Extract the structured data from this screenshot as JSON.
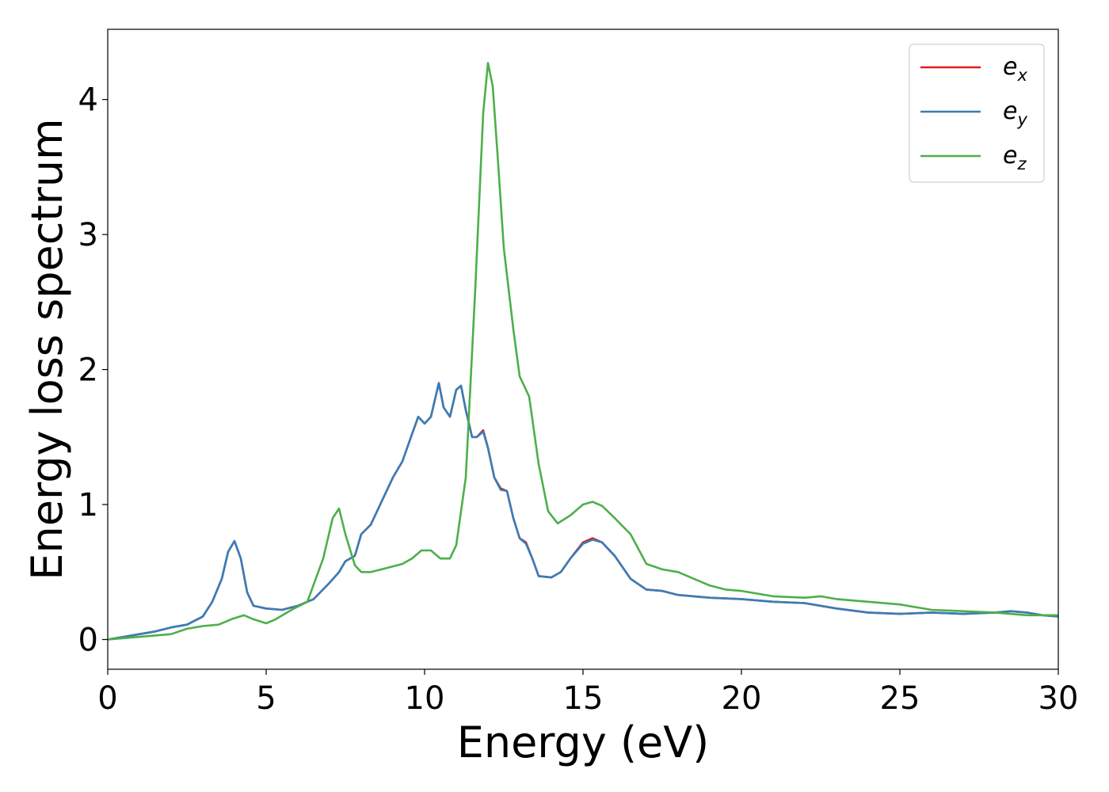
{
  "chart_data": {
    "type": "line",
    "xlabel": "Energy (eV)",
    "ylabel": "Energy loss spectrum",
    "xlim": [
      0,
      30
    ],
    "ylim": [
      -0.22,
      4.52
    ],
    "xticks": [
      0,
      5,
      10,
      15,
      20,
      25,
      30
    ],
    "yticks": [
      0,
      1,
      2,
      3,
      4
    ],
    "xtick_labels": [
      "0",
      "5",
      "10",
      "15",
      "20",
      "25",
      "30"
    ],
    "ytick_labels": [
      "0",
      "1",
      "2",
      "3",
      "4"
    ],
    "grid": false,
    "legend_position": "top-right",
    "series": [
      {
        "name": "e_x",
        "legend_base": "e",
        "legend_sub": "x",
        "color": "#e41a1c",
        "x": [
          0,
          0.5,
          1,
          1.5,
          2,
          2.5,
          3,
          3.3,
          3.6,
          3.8,
          4.0,
          4.2,
          4.4,
          4.6,
          5.0,
          5.5,
          6.0,
          6.5,
          7.0,
          7.3,
          7.5,
          7.8,
          8.0,
          8.3,
          8.6,
          9.0,
          9.3,
          9.6,
          9.8,
          10.0,
          10.2,
          10.45,
          10.6,
          10.8,
          11.0,
          11.15,
          11.3,
          11.5,
          11.65,
          11.85,
          12.0,
          12.2,
          12.4,
          12.6,
          12.8,
          13.0,
          13.2,
          13.4,
          13.6,
          14.0,
          14.3,
          14.6,
          15.0,
          15.3,
          15.6,
          16.0,
          16.5,
          17.0,
          17.5,
          18.0,
          19.0,
          20.0,
          21.0,
          22.0,
          23.0,
          24.0,
          25.0,
          26.0,
          27.0,
          28.0,
          28.5,
          29.0,
          29.5,
          30.0
        ],
        "values": [
          0.0,
          0.02,
          0.04,
          0.06,
          0.09,
          0.11,
          0.17,
          0.28,
          0.45,
          0.65,
          0.73,
          0.6,
          0.35,
          0.25,
          0.23,
          0.22,
          0.25,
          0.3,
          0.42,
          0.5,
          0.58,
          0.62,
          0.78,
          0.85,
          1.0,
          1.2,
          1.32,
          1.52,
          1.65,
          1.6,
          1.65,
          1.9,
          1.72,
          1.65,
          1.85,
          1.88,
          1.7,
          1.5,
          1.5,
          1.55,
          1.42,
          1.2,
          1.12,
          1.1,
          0.9,
          0.75,
          0.72,
          0.6,
          0.47,
          0.46,
          0.5,
          0.6,
          0.72,
          0.75,
          0.72,
          0.62,
          0.45,
          0.37,
          0.36,
          0.33,
          0.31,
          0.3,
          0.28,
          0.27,
          0.23,
          0.2,
          0.19,
          0.2,
          0.19,
          0.2,
          0.21,
          0.2,
          0.18,
          0.17
        ]
      },
      {
        "name": "e_y",
        "legend_base": "e",
        "legend_sub": "y",
        "color": "#377eb8",
        "x": [
          0,
          0.5,
          1,
          1.5,
          2,
          2.5,
          3,
          3.3,
          3.6,
          3.8,
          4.0,
          4.2,
          4.4,
          4.6,
          5.0,
          5.5,
          6.0,
          6.5,
          7.0,
          7.3,
          7.5,
          7.8,
          8.0,
          8.3,
          8.6,
          9.0,
          9.3,
          9.6,
          9.8,
          10.0,
          10.2,
          10.45,
          10.6,
          10.8,
          11.0,
          11.15,
          11.3,
          11.5,
          11.65,
          11.85,
          12.0,
          12.2,
          12.4,
          12.6,
          12.8,
          13.0,
          13.2,
          13.4,
          13.6,
          14.0,
          14.3,
          14.6,
          15.0,
          15.3,
          15.6,
          16.0,
          16.5,
          17.0,
          17.5,
          18.0,
          19.0,
          20.0,
          21.0,
          22.0,
          23.0,
          24.0,
          25.0,
          26.0,
          27.0,
          28.0,
          28.5,
          29.0,
          29.5,
          30.0
        ],
        "values": [
          0.0,
          0.02,
          0.04,
          0.06,
          0.09,
          0.11,
          0.17,
          0.28,
          0.45,
          0.65,
          0.73,
          0.6,
          0.35,
          0.25,
          0.23,
          0.22,
          0.25,
          0.3,
          0.42,
          0.5,
          0.58,
          0.62,
          0.78,
          0.85,
          1.0,
          1.2,
          1.32,
          1.52,
          1.65,
          1.6,
          1.65,
          1.9,
          1.72,
          1.65,
          1.85,
          1.88,
          1.7,
          1.5,
          1.5,
          1.54,
          1.42,
          1.2,
          1.11,
          1.1,
          0.9,
          0.75,
          0.71,
          0.6,
          0.47,
          0.46,
          0.5,
          0.6,
          0.71,
          0.74,
          0.72,
          0.62,
          0.45,
          0.37,
          0.36,
          0.33,
          0.31,
          0.3,
          0.28,
          0.27,
          0.23,
          0.2,
          0.19,
          0.2,
          0.19,
          0.2,
          0.21,
          0.2,
          0.18,
          0.17
        ]
      },
      {
        "name": "e_z",
        "legend_base": "e",
        "legend_sub": "z",
        "color": "#4daf4a",
        "x": [
          0,
          1,
          2,
          2.5,
          3,
          3.5,
          3.9,
          4.3,
          4.6,
          5.0,
          5.3,
          5.8,
          6.3,
          6.8,
          7.1,
          7.3,
          7.5,
          7.8,
          8.0,
          8.3,
          8.8,
          9.3,
          9.6,
          9.9,
          10.2,
          10.5,
          10.8,
          11.0,
          11.3,
          11.6,
          11.85,
          12.0,
          12.15,
          12.3,
          12.5,
          12.8,
          13.0,
          13.3,
          13.6,
          13.9,
          14.2,
          14.6,
          15.0,
          15.3,
          15.6,
          16.0,
          16.5,
          17.0,
          17.5,
          18.0,
          18.5,
          19.0,
          19.5,
          20.0,
          21.0,
          22.0,
          22.5,
          23.0,
          24.0,
          25.0,
          26.0,
          27.0,
          28.0,
          29.0,
          30.0
        ],
        "values": [
          0.0,
          0.02,
          0.04,
          0.08,
          0.1,
          0.11,
          0.15,
          0.18,
          0.15,
          0.12,
          0.15,
          0.22,
          0.28,
          0.6,
          0.9,
          0.97,
          0.78,
          0.55,
          0.5,
          0.5,
          0.53,
          0.56,
          0.6,
          0.66,
          0.66,
          0.6,
          0.6,
          0.7,
          1.2,
          2.6,
          3.9,
          4.27,
          4.1,
          3.6,
          2.9,
          2.3,
          1.95,
          1.8,
          1.3,
          0.95,
          0.86,
          0.92,
          1.0,
          1.02,
          0.99,
          0.9,
          0.78,
          0.56,
          0.52,
          0.5,
          0.45,
          0.4,
          0.37,
          0.36,
          0.32,
          0.31,
          0.32,
          0.3,
          0.28,
          0.26,
          0.22,
          0.21,
          0.2,
          0.18,
          0.18
        ]
      }
    ]
  }
}
